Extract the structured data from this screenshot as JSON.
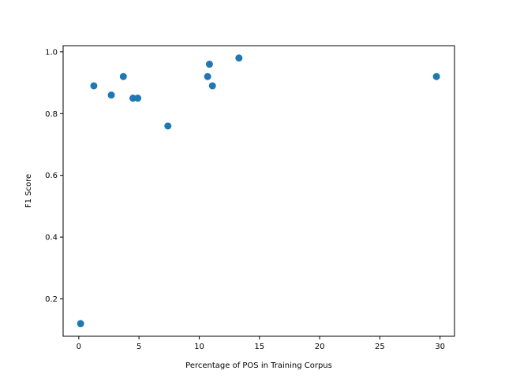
{
  "chart_data": {
    "type": "scatter",
    "title": "",
    "xlabel": "Percentage of POS in Training Corpus",
    "ylabel": "F1 Score",
    "xlim": [
      -1.3,
      31.2
    ],
    "ylim": [
      0.079,
      1.02
    ],
    "xticks": [
      0,
      5,
      10,
      15,
      20,
      25,
      30
    ],
    "yticks": [
      0.2,
      0.4,
      0.6,
      0.8,
      1.0
    ],
    "xtick_labels": [
      "0",
      "5",
      "10",
      "15",
      "20",
      "25",
      "30"
    ],
    "ytick_labels": [
      "0.2",
      "0.4",
      "0.6",
      "0.8",
      "1.0"
    ],
    "grid": false,
    "marker_color": "#1f77b4",
    "points": [
      {
        "x": 0.15,
        "y": 0.12
      },
      {
        "x": 1.25,
        "y": 0.89
      },
      {
        "x": 2.7,
        "y": 0.86
      },
      {
        "x": 3.7,
        "y": 0.92
      },
      {
        "x": 4.5,
        "y": 0.85
      },
      {
        "x": 4.9,
        "y": 0.85
      },
      {
        "x": 7.4,
        "y": 0.76
      },
      {
        "x": 10.7,
        "y": 0.92
      },
      {
        "x": 10.85,
        "y": 0.96
      },
      {
        "x": 11.1,
        "y": 0.89
      },
      {
        "x": 13.3,
        "y": 0.98
      },
      {
        "x": 29.7,
        "y": 0.92
      }
    ]
  }
}
